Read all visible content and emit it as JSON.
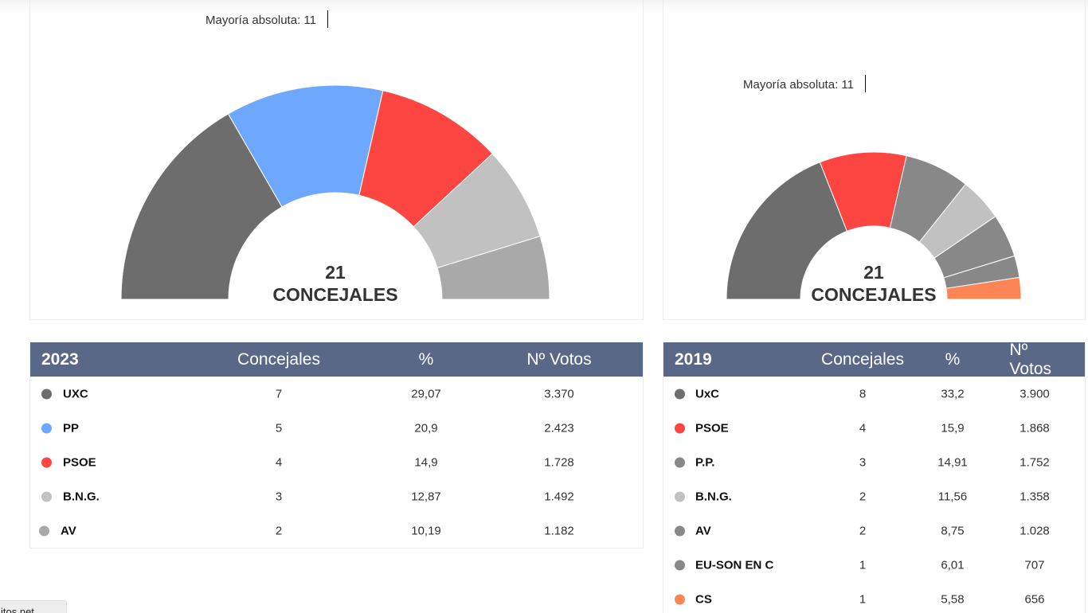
{
  "colors": {
    "header_bg": "#5a6888",
    "uxc": "#6d6d6d",
    "pp": "#6ea8fc",
    "psoe": "#fd4541",
    "bng": "#c1c1c1",
    "av_2023": "#a9a9a9",
    "gray_2019": "#888888",
    "cs": "#fd8455"
  },
  "chart_data": [
    {
      "type": "pie",
      "subtype": "hemicycle",
      "title": "2023",
      "center_label": {
        "number": "21",
        "text": "CONCEJALES"
      },
      "annotation": "Mayoría absoluta: 11",
      "categories": [
        "UXC",
        "PP",
        "PSOE",
        "B.N.G.",
        "AV"
      ],
      "values": [
        7,
        5,
        4,
        3,
        2
      ],
      "colors": [
        "#6d6d6d",
        "#6ea8fc",
        "#fd4541",
        "#c1c1c1",
        "#a9a9a9"
      ],
      "total_seats": 21,
      "majority": 11
    },
    {
      "type": "pie",
      "subtype": "hemicycle",
      "title": "2019",
      "center_label": {
        "number": "21",
        "text": "CONCEJALES"
      },
      "annotation": "Mayoría absoluta: 11",
      "categories": [
        "UxC",
        "PSOE",
        "P.P.",
        "B.N.G.",
        "AV",
        "EU-SON EN C",
        "CS"
      ],
      "values": [
        8,
        4,
        3,
        2,
        2,
        1,
        1
      ],
      "colors": [
        "#6d6d6d",
        "#fd4541",
        "#888888",
        "#c1c1c1",
        "#888888",
        "#888888",
        "#fd8455"
      ],
      "total_seats": 21,
      "majority": 11
    },
    {
      "type": "table",
      "title": "2023",
      "columns": [
        "2023",
        "Concejales",
        "%",
        "Nº Votos"
      ],
      "rows": [
        [
          "UXC",
          "7",
          "29,07",
          "3.370"
        ],
        [
          "PP",
          "5",
          "20,9",
          "2.423"
        ],
        [
          "PSOE",
          "4",
          "14,9",
          "1.728"
        ],
        [
          "B.N.G.",
          "3",
          "12,87",
          "1.492"
        ],
        [
          "AV",
          "2",
          "10,19",
          "1.182"
        ]
      ]
    },
    {
      "type": "table",
      "title": "2019",
      "columns": [
        "2019",
        "Concejales",
        "%",
        "Nº Votos"
      ],
      "rows": [
        [
          "UxC",
          "8",
          "33,2",
          "3.900"
        ],
        [
          "PSOE",
          "4",
          "15,9",
          "1.868"
        ],
        [
          "P.P.",
          "3",
          "14,91",
          "1.752"
        ],
        [
          "B.N.G.",
          "2",
          "11,56",
          "1.358"
        ],
        [
          "AV",
          "2",
          "8,75",
          "1.028"
        ],
        [
          "EU-SON EN C",
          "1",
          "6,01",
          "707"
        ],
        [
          "CS",
          "1",
          "5,58",
          "656"
        ]
      ]
    }
  ],
  "charts": {
    "y2023": {
      "majority_label": "Mayoría absoluta: 11",
      "center_number": "21",
      "center_text": "CONCEJALES"
    },
    "y2019": {
      "majority_label": "Mayoría absoluta: 11",
      "center_number": "21",
      "center_text": "CONCEJALES"
    }
  },
  "tables": {
    "t2023": {
      "header": {
        "year": "2023",
        "seats": "Concejales",
        "pct": "%",
        "votes": "Nº Votos"
      },
      "rows": [
        {
          "party": "UXC",
          "seats": "7",
          "pct": "29,07",
          "votes": "3.370",
          "color": "#6d6d6d"
        },
        {
          "party": "PP",
          "seats": "5",
          "pct": "20,9",
          "votes": "2.423",
          "color": "#6ea8fc"
        },
        {
          "party": "PSOE",
          "seats": "4",
          "pct": "14,9",
          "votes": "1.728",
          "color": "#fd4541"
        },
        {
          "party": "B.N.G.",
          "seats": "3",
          "pct": "12,87",
          "votes": "1.492",
          "color": "#c1c1c1"
        },
        {
          "party": "AV",
          "seats": "2",
          "pct": "10,19",
          "votes": "1.182",
          "color": "#a9a9a9"
        }
      ]
    },
    "t2019": {
      "header": {
        "year": "2019",
        "seats": "Concejales",
        "pct": "%",
        "votes": "Nº Votos"
      },
      "rows": [
        {
          "party": "UxC",
          "seats": "8",
          "pct": "33,2",
          "votes": "3.900",
          "color": "#6d6d6d"
        },
        {
          "party": "PSOE",
          "seats": "4",
          "pct": "15,9",
          "votes": "1.868",
          "color": "#fd4541"
        },
        {
          "party": "P.P.",
          "seats": "3",
          "pct": "14,91",
          "votes": "1.752",
          "color": "#888888"
        },
        {
          "party": "B.N.G.",
          "seats": "2",
          "pct": "11,56",
          "votes": "1.358",
          "color": "#c1c1c1"
        },
        {
          "party": "AV",
          "seats": "2",
          "pct": "8,75",
          "votes": "1.028",
          "color": "#888888"
        },
        {
          "party": "EU-SON EN C",
          "seats": "1",
          "pct": "6,01",
          "votes": "707",
          "color": "#888888"
        },
        {
          "party": "CS",
          "seats": "1",
          "pct": "5,58",
          "votes": "656",
          "color": "#fd8455"
        }
      ]
    }
  },
  "status_tip": {
    "text": "itos.net"
  }
}
